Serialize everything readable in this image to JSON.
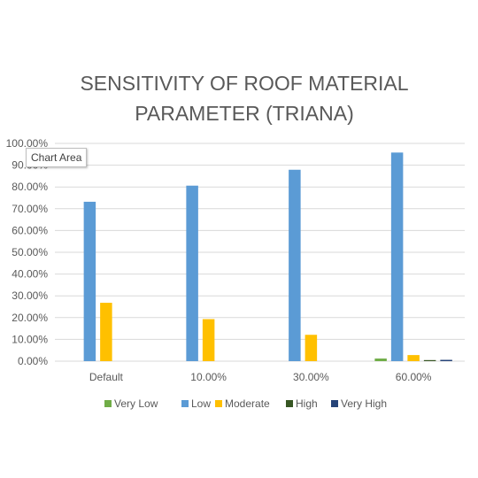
{
  "chart_data": {
    "type": "bar",
    "title_lines": [
      "SENSITIVITY OF ROOF MATERIAL",
      "PARAMETER (TRIANA)"
    ],
    "categories": [
      "Default",
      "10.00%",
      "30.00%",
      "60.00%"
    ],
    "series": [
      {
        "name": "Very Low",
        "color": "#70ad47",
        "values": [
          0,
          0,
          0,
          1.2
        ]
      },
      {
        "name": "Low",
        "color": "#5b9bd5",
        "values": [
          73.2,
          80.6,
          87.9,
          95.8
        ]
      },
      {
        "name": "Moderate",
        "color": "#ffc000",
        "values": [
          26.8,
          19.3,
          12.1,
          2.8
        ]
      },
      {
        "name": "High",
        "color": "#375623",
        "values": [
          0,
          0,
          0,
          0.1
        ]
      },
      {
        "name": "Very High",
        "color": "#264478",
        "values": [
          0,
          0,
          0,
          0.6
        ]
      }
    ],
    "yticks": [
      "0.00%",
      "10.00%",
      "20.00%",
      "30.00%",
      "40.00%",
      "50.00%",
      "60.00%",
      "70.00%",
      "80.00%",
      "90.00%",
      "100.00%"
    ],
    "ylim": [
      0,
      100
    ],
    "grid": true,
    "legend_position": "bottom"
  },
  "tooltip": {
    "text": "Chart Area"
  }
}
